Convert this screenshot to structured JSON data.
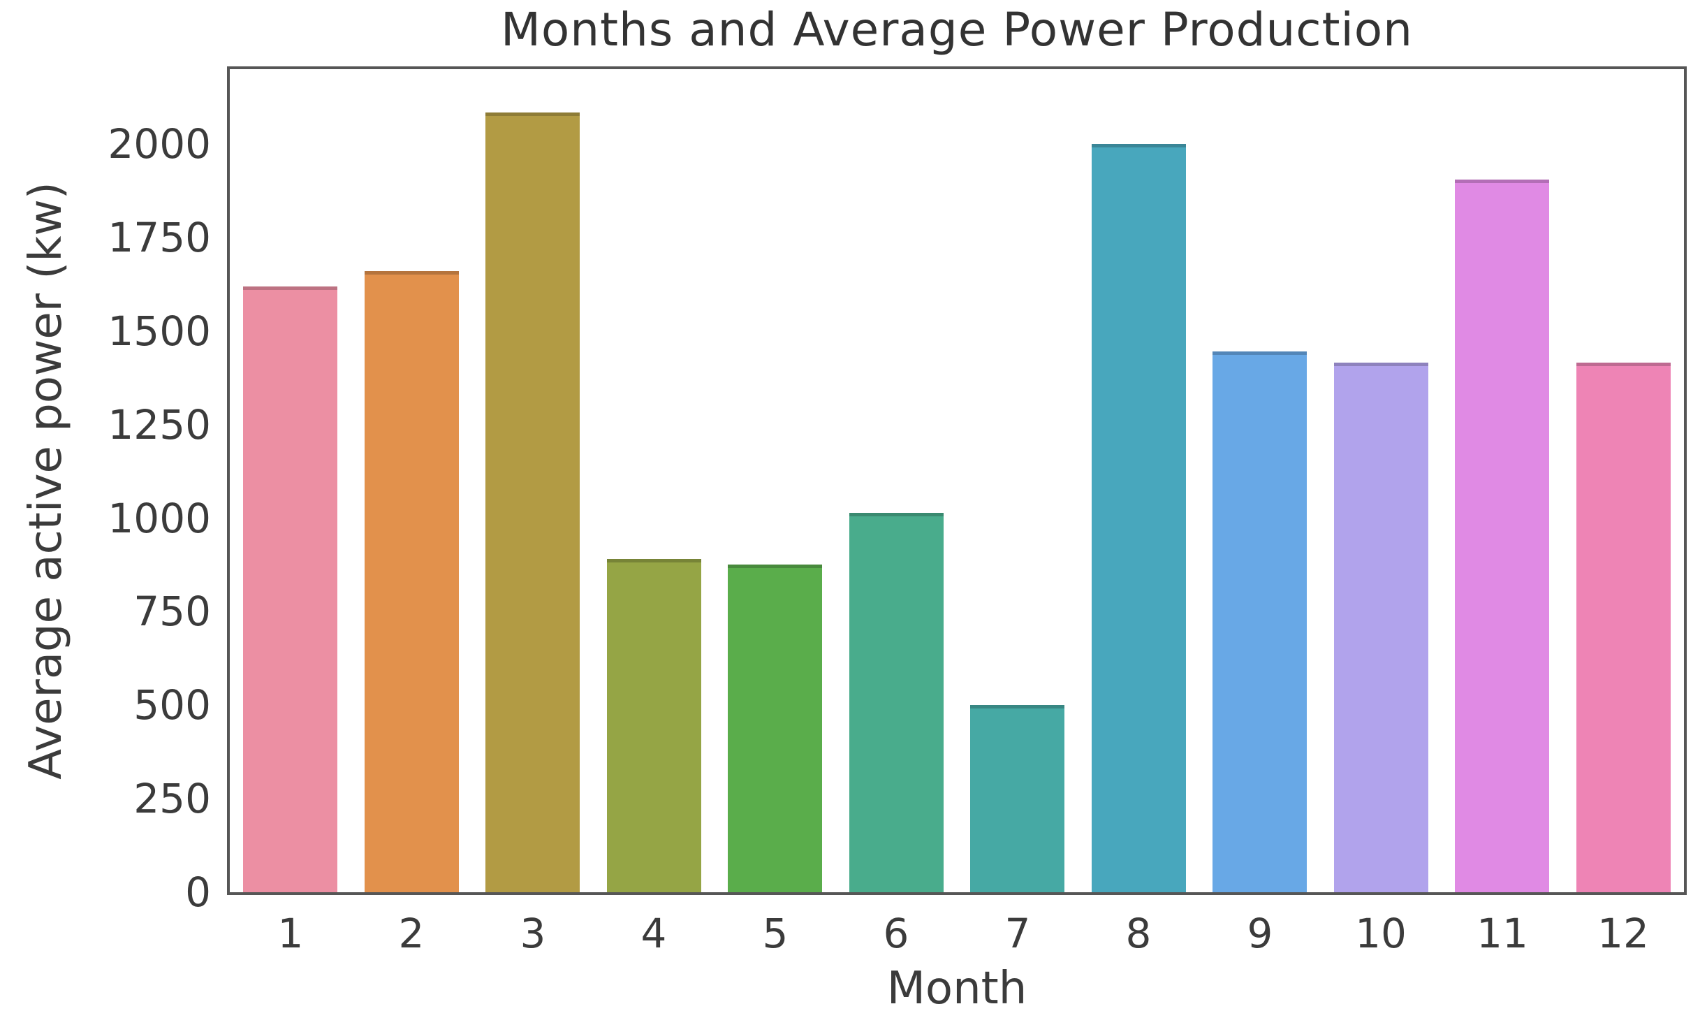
{
  "figure": {
    "title": "Months and Average Power Production",
    "x_axis_label": "Month",
    "y_axis_label": "Average active power (kw)"
  },
  "chart_data": {
    "type": "bar",
    "title": "Months and Average Power Production",
    "xlabel": "Month",
    "ylabel": "Average active power (kw)",
    "categories": [
      "1",
      "2",
      "3",
      "4",
      "5",
      "6",
      "7",
      "8",
      "9",
      "10",
      "11",
      "12"
    ],
    "values": [
      1620,
      1660,
      2085,
      890,
      875,
      1015,
      500,
      2000,
      1445,
      1415,
      1905,
      1415
    ],
    "bar_colors": [
      "#ec8fa3",
      "#e2914c",
      "#b29b44",
      "#95a545",
      "#5aad4b",
      "#49ac8c",
      "#46a9a4",
      "#48a7bd",
      "#68a8e6",
      "#b1a3ec",
      "#e08ae4",
      "#ee84b5"
    ],
    "yticks": [
      0,
      250,
      500,
      750,
      1000,
      1250,
      1500,
      1750,
      2000
    ],
    "ylim": [
      0,
      2200
    ],
    "grid": false,
    "legend": null,
    "background_color": "#ffffff",
    "spine_color": "#565656",
    "text_color": "#3b3b3b"
  }
}
